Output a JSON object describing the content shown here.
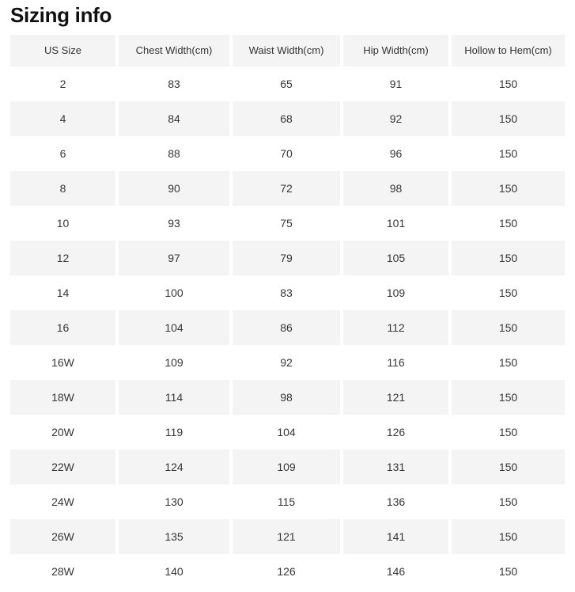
{
  "page": {
    "title": "Sizing info"
  },
  "table": {
    "headers": [
      "US Size",
      "Chest Width(cm)",
      "Waist Width(cm)",
      "Hip Width(cm)",
      "Hollow to Hem(cm)"
    ],
    "rows": [
      [
        "2",
        "83",
        "65",
        "91",
        "150"
      ],
      [
        "4",
        "84",
        "68",
        "92",
        "150"
      ],
      [
        "6",
        "88",
        "70",
        "96",
        "150"
      ],
      [
        "8",
        "90",
        "72",
        "98",
        "150"
      ],
      [
        "10",
        "93",
        "75",
        "101",
        "150"
      ],
      [
        "12",
        "97",
        "79",
        "105",
        "150"
      ],
      [
        "14",
        "100",
        "83",
        "109",
        "150"
      ],
      [
        "16",
        "104",
        "86",
        "112",
        "150"
      ],
      [
        "16W",
        "109",
        "92",
        "116",
        "150"
      ],
      [
        "18W",
        "114",
        "98",
        "121",
        "150"
      ],
      [
        "20W",
        "119",
        "104",
        "126",
        "150"
      ],
      [
        "22W",
        "124",
        "109",
        "131",
        "150"
      ],
      [
        "24W",
        "130",
        "115",
        "136",
        "150"
      ],
      [
        "26W",
        "135",
        "121",
        "141",
        "150"
      ],
      [
        "28W",
        "140",
        "126",
        "146",
        "150"
      ]
    ],
    "colors": {
      "header_bg": "#f4f4f4",
      "row_alt_bg": "#f4f4f4",
      "row_bg": "#ffffff",
      "text": "#333333",
      "title_text": "#111111"
    }
  }
}
